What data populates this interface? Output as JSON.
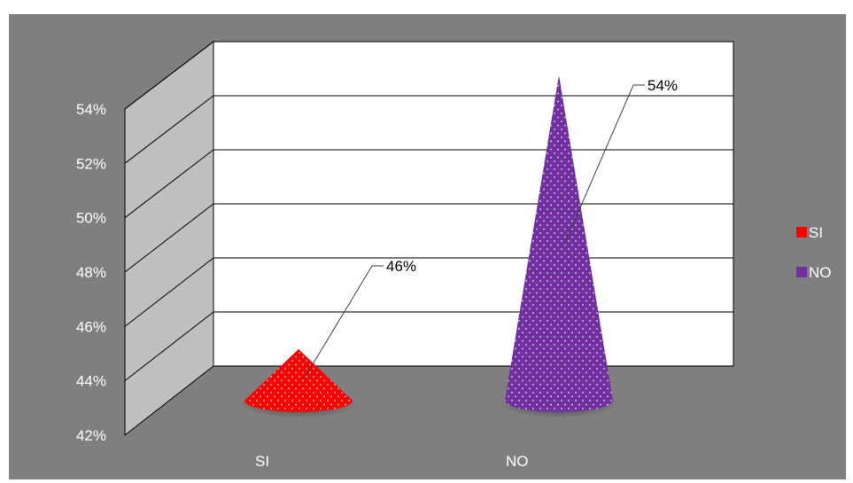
{
  "chart_data": {
    "type": "bar",
    "shape": "cone",
    "categories": [
      "SI",
      "NO"
    ],
    "values": [
      0.46,
      0.54
    ],
    "value_format": "percent",
    "data_labels": [
      "46%",
      "54%"
    ],
    "ylim": [
      0.42,
      0.54
    ],
    "yticks": [
      "42%",
      "44%",
      "46%",
      "48%",
      "50%",
      "52%",
      "54%"
    ],
    "grid": true,
    "legend": {
      "position": "right",
      "entries": [
        {
          "label": "SI",
          "color": "#ff0000"
        },
        {
          "label": "NO",
          "color": "#7030a0"
        }
      ]
    },
    "colors": {
      "SI": "#ff0000",
      "NO": "#7030a0",
      "plot_background": "#ffffff",
      "chart_background": "#7f7f7f",
      "side_wall": "#bfbfbf"
    }
  }
}
